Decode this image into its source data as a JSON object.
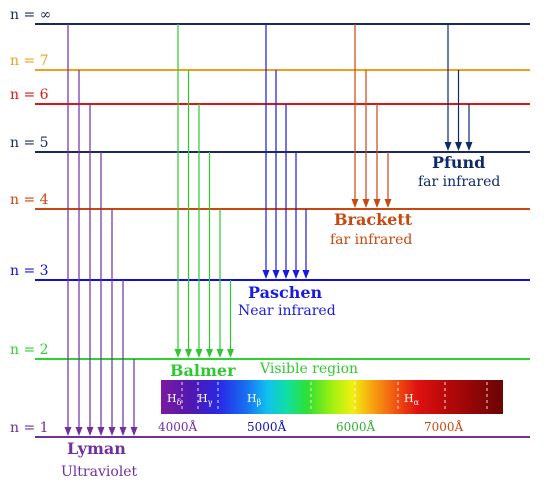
{
  "levels": [
    {
      "label": "n = ∞",
      "color": "#1a2a5e"
    },
    {
      "label": "n = 7",
      "color": "#f0a020"
    },
    {
      "label": "n = 6",
      "color": "#d81818"
    },
    {
      "label": "n = 5",
      "color": "#1a2a5e"
    },
    {
      "label": "n = 4",
      "color": "#c84810"
    },
    {
      "label": "n = 3",
      "color": "#1010e0"
    },
    {
      "label": "n = 2",
      "color": "#30d030"
    },
    {
      "label": "n = 1",
      "color": "#7030a0"
    }
  ],
  "series": [
    {
      "name": "Lyman",
      "subtitle": "Ultraviolet",
      "color": "#7030a0",
      "lower": 1
    },
    {
      "name": "Balmer",
      "subtitle": "",
      "color": "#30c830",
      "lower": 2
    },
    {
      "name": "Paschen",
      "subtitle": "Near infrared",
      "color": "#1a1ae0",
      "lower": 3
    },
    {
      "name": "Brackett",
      "subtitle": "far infrared",
      "color": "#c84810",
      "lower": 4
    },
    {
      "name": "Pfund",
      "subtitle": "far infrared",
      "color": "#0e2a6a",
      "lower": 5
    }
  ],
  "visible_region_label": "Visible region",
  "spectrum": {
    "lines": [
      {
        "label": "Hδ",
        "text": "H",
        "sub": "δ"
      },
      {
        "label": "Hγ",
        "text": "H",
        "sub": "γ"
      },
      {
        "label": "Hβ",
        "text": "H",
        "sub": "β"
      },
      {
        "label": "Hα",
        "text": "H",
        "sub": "α"
      }
    ],
    "wavelengths": [
      {
        "label": "4000Å",
        "color": "#7030a0"
      },
      {
        "label": "5000Å",
        "color": "#1010c0"
      },
      {
        "label": "6000Å",
        "color": "#30b030"
      },
      {
        "label": "7000Å",
        "color": "#c84810"
      }
    ]
  }
}
